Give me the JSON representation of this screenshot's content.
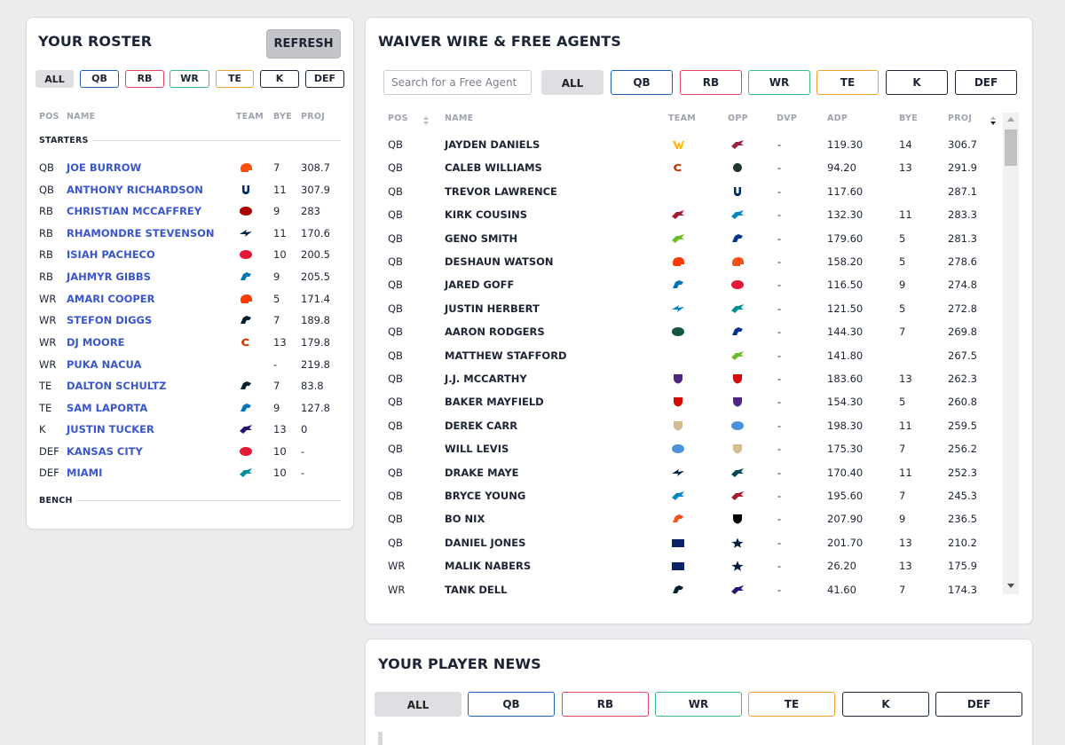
{
  "roster": {
    "title": "YOUR ROSTER",
    "refresh_label": "REFRESH",
    "filters": [
      "ALL",
      "QB",
      "RB",
      "WR",
      "TE",
      "K",
      "DEF"
    ],
    "headers": {
      "pos": "POS",
      "name": "NAME",
      "team": "TEAM",
      "bye": "BYE",
      "proj": "PROJ"
    },
    "starters_label": "STARTERS",
    "bench_label": "BENCH",
    "players": [
      {
        "pos": "QB",
        "name": "JOE BURROW",
        "team": "cin",
        "bye": "7",
        "proj": "308.7"
      },
      {
        "pos": "QB",
        "name": "ANTHONY RICHARDSON",
        "team": "ind",
        "bye": "11",
        "proj": "307.9"
      },
      {
        "pos": "RB",
        "name": "CHRISTIAN MCCAFFREY",
        "team": "sf",
        "bye": "9",
        "proj": "283"
      },
      {
        "pos": "RB",
        "name": "RHAMONDRE STEVENSON",
        "team": "ne",
        "bye": "11",
        "proj": "170.6"
      },
      {
        "pos": "RB",
        "name": "ISIAH PACHECO",
        "team": "kc",
        "bye": "10",
        "proj": "200.5"
      },
      {
        "pos": "RB",
        "name": "JAHMYR GIBBS",
        "team": "det",
        "bye": "9",
        "proj": "205.5"
      },
      {
        "pos": "WR",
        "name": "AMARI COOPER",
        "team": "cle",
        "bye": "5",
        "proj": "171.4"
      },
      {
        "pos": "WR",
        "name": "STEFON DIGGS",
        "team": "hou",
        "bye": "7",
        "proj": "189.8"
      },
      {
        "pos": "WR",
        "name": "DJ MOORE",
        "team": "chi",
        "bye": "13",
        "proj": "179.8"
      },
      {
        "pos": "WR",
        "name": "PUKA NACUA",
        "team": "",
        "bye": "-",
        "proj": "219.8"
      },
      {
        "pos": "TE",
        "name": "DALTON SCHULTZ",
        "team": "hou",
        "bye": "7",
        "proj": "83.8"
      },
      {
        "pos": "TE",
        "name": "SAM LAPORTA",
        "team": "det",
        "bye": "9",
        "proj": "127.8"
      },
      {
        "pos": "K",
        "name": "JUSTIN TUCKER",
        "team": "bal",
        "bye": "13",
        "proj": "0"
      },
      {
        "pos": "DEF",
        "name": "KANSAS CITY",
        "team": "kc",
        "bye": "10",
        "proj": "-"
      },
      {
        "pos": "DEF",
        "name": "MIAMI",
        "team": "mia",
        "bye": "10",
        "proj": "-"
      }
    ]
  },
  "waiver": {
    "title": "WAIVER WIRE & FREE AGENTS",
    "search_placeholder": "Search for a Free Agent",
    "filters": [
      "ALL",
      "QB",
      "RB",
      "WR",
      "TE",
      "K",
      "DEF"
    ],
    "headers": {
      "pos": "POS",
      "name": "NAME",
      "team": "TEAM",
      "opp": "OPP",
      "dvp": "DVP",
      "adp": "ADP",
      "bye": "BYE",
      "proj": "PROJ"
    },
    "players": [
      {
        "pos": "QB",
        "name": "JAYDEN DANIELS",
        "team": "was",
        "opp": "ari",
        "dvp": "-",
        "adp": "119.30",
        "bye": "14",
        "proj": "306.7"
      },
      {
        "pos": "QB",
        "name": "CALEB WILLIAMS",
        "team": "chi",
        "opp": "gb",
        "dvp": "-",
        "adp": "94.20",
        "bye": "13",
        "proj": "291.9"
      },
      {
        "pos": "QB",
        "name": "TREVOR LAWRENCE",
        "team": "",
        "opp": "ind",
        "dvp": "-",
        "adp": "117.60",
        "bye": "",
        "proj": "287.1"
      },
      {
        "pos": "QB",
        "name": "KIRK COUSINS",
        "team": "atl",
        "opp": "car",
        "dvp": "-",
        "adp": "132.30",
        "bye": "11",
        "proj": "283.3"
      },
      {
        "pos": "QB",
        "name": "GENO SMITH",
        "team": "sea",
        "opp": "lar",
        "dvp": "-",
        "adp": "179.60",
        "bye": "5",
        "proj": "281.3"
      },
      {
        "pos": "QB",
        "name": "DESHAUN WATSON",
        "team": "cle",
        "opp": "cin",
        "dvp": "-",
        "adp": "158.20",
        "bye": "5",
        "proj": "278.6"
      },
      {
        "pos": "QB",
        "name": "JARED GOFF",
        "team": "det",
        "opp": "kc",
        "dvp": "-",
        "adp": "116.50",
        "bye": "9",
        "proj": "274.8"
      },
      {
        "pos": "QB",
        "name": "JUSTIN HERBERT",
        "team": "lac",
        "opp": "mia",
        "dvp": "-",
        "adp": "121.50",
        "bye": "5",
        "proj": "272.8"
      },
      {
        "pos": "QB",
        "name": "AARON RODGERS",
        "team": "nyj",
        "opp": "buf",
        "dvp": "-",
        "adp": "144.30",
        "bye": "7",
        "proj": "269.8"
      },
      {
        "pos": "QB",
        "name": "MATTHEW STAFFORD",
        "team": "",
        "opp": "sea",
        "dvp": "-",
        "adp": "141.80",
        "bye": "",
        "proj": "267.5"
      },
      {
        "pos": "QB",
        "name": "J.J. MCCARTHY",
        "team": "min",
        "opp": "tb",
        "dvp": "-",
        "adp": "183.60",
        "bye": "13",
        "proj": "262.3"
      },
      {
        "pos": "QB",
        "name": "BAKER MAYFIELD",
        "team": "tb",
        "opp": "min",
        "dvp": "-",
        "adp": "154.30",
        "bye": "5",
        "proj": "260.8"
      },
      {
        "pos": "QB",
        "name": "DEREK CARR",
        "team": "no",
        "opp": "ten",
        "dvp": "-",
        "adp": "198.30",
        "bye": "11",
        "proj": "259.5"
      },
      {
        "pos": "QB",
        "name": "WILL LEVIS",
        "team": "ten",
        "opp": "no",
        "dvp": "-",
        "adp": "175.30",
        "bye": "7",
        "proj": "256.2"
      },
      {
        "pos": "QB",
        "name": "DRAKE MAYE",
        "team": "ne",
        "opp": "phi",
        "dvp": "-",
        "adp": "170.40",
        "bye": "11",
        "proj": "252.3"
      },
      {
        "pos": "QB",
        "name": "BRYCE YOUNG",
        "team": "car",
        "opp": "atl",
        "dvp": "-",
        "adp": "195.60",
        "bye": "7",
        "proj": "245.3"
      },
      {
        "pos": "QB",
        "name": "BO NIX",
        "team": "den",
        "opp": "lv",
        "dvp": "-",
        "adp": "207.90",
        "bye": "9",
        "proj": "236.5"
      },
      {
        "pos": "QB",
        "name": "DANIEL JONES",
        "team": "nyg",
        "opp": "dal",
        "dvp": "-",
        "adp": "201.70",
        "bye": "13",
        "proj": "210.2"
      },
      {
        "pos": "WR",
        "name": "MALIK NABERS",
        "team": "nyg",
        "opp": "dal",
        "dvp": "-",
        "adp": "26.20",
        "bye": "13",
        "proj": "175.9"
      },
      {
        "pos": "WR",
        "name": "TANK DELL",
        "team": "hou",
        "opp": "bal",
        "dvp": "-",
        "adp": "41.60",
        "bye": "7",
        "proj": "174.3"
      }
    ]
  },
  "news": {
    "title": "YOUR PLAYER NEWS",
    "filters": [
      "ALL",
      "QB",
      "RB",
      "WR",
      "TE",
      "K",
      "DEF"
    ]
  },
  "team_colors": {
    "cin": "#fb4f14",
    "ind": "#002c5f",
    "sf": "#aa0000",
    "ne": "#002244",
    "kc": "#e31837",
    "det": "#0076b6",
    "cle": "#ff3c00",
    "hou": "#03202f",
    "chi": "#c83803",
    "bal": "#241773",
    "mia": "#008e97",
    "was": "#ffb612",
    "ari": "#97233f",
    "gb": "#203731",
    "atl": "#a71930",
    "car": "#0085ca",
    "sea": "#69be28",
    "lar": "#003594",
    "lac": "#0080c6",
    "nyj": "#125740",
    "buf": "#00338d",
    "min": "#4f2683",
    "tb": "#d50a0a",
    "no": "#d3bc8d",
    "ten": "#4b92db",
    "phi": "#004c54",
    "den": "#fb4f14",
    "lv": "#000000",
    "nyg": "#0b2265",
    "dal": "#041e42"
  }
}
